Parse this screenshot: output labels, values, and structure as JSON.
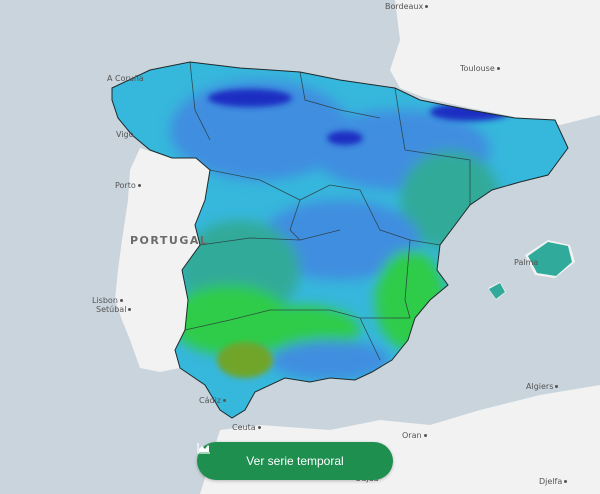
{
  "map": {
    "countries": {
      "portugal": "PORTUGAL"
    },
    "cities": {
      "bordeaux": "Bordeaux",
      "toulouse": "Toulouse",
      "a_coruna": "A Coruña",
      "vigo": "Vigo",
      "porto": "Porto",
      "lisbon": "Lisbon",
      "setubal": "Setúbal",
      "palma": "Palma",
      "cadiz": "Cádiz",
      "ceuta": "Ceuta",
      "algiers": "Algiers",
      "oran": "Oran",
      "djelfa": "Djelfa",
      "oujda": "Oujda"
    },
    "colors": {
      "sea": "#c9d4dc",
      "land": "#f2f2f2",
      "dark_blue": "#1a2fc2",
      "mid_blue": "#3f8ee0",
      "cyan": "#36b7dc",
      "teal": "#30aa9a",
      "green": "#2ecc4a",
      "olive": "#6fa52b"
    }
  },
  "actions": {
    "series_button": {
      "label": "Ver serie temporal",
      "icon": "chart-area-icon"
    }
  }
}
